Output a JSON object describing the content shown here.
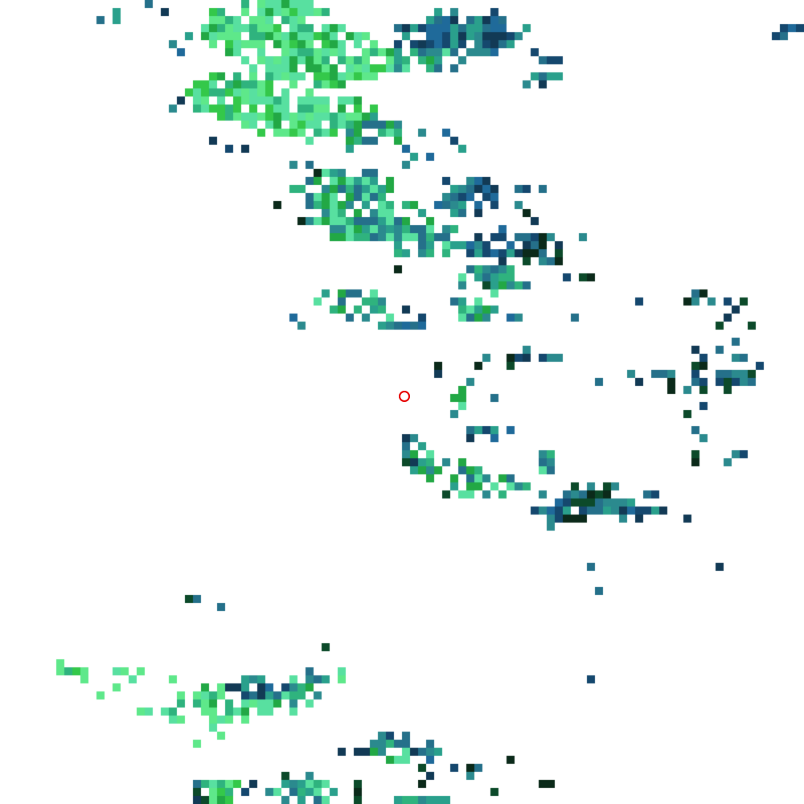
{
  "map": {
    "type": "pixel-raster",
    "grid_cells": 100,
    "background_color": "#ffffff",
    "palette": {
      "light_green": "#5ee88a",
      "mint": "#58e0a0",
      "bright_green": "#34c84a",
      "green": "#22a845",
      "forest": "#1a8f3c",
      "teal_green": "#2fb37e",
      "teal": "#2aa08c",
      "teal_blue": "#2b8a8e",
      "steel_blue": "#25708a",
      "blue": "#1f6a9a",
      "navy": "#15486e",
      "dark_navy": "#123a55",
      "dark_green": "#0c4a2a",
      "darkest": "#0b2a1a"
    },
    "marker": {
      "name": "location-marker",
      "color": "#e60000"
    }
  }
}
